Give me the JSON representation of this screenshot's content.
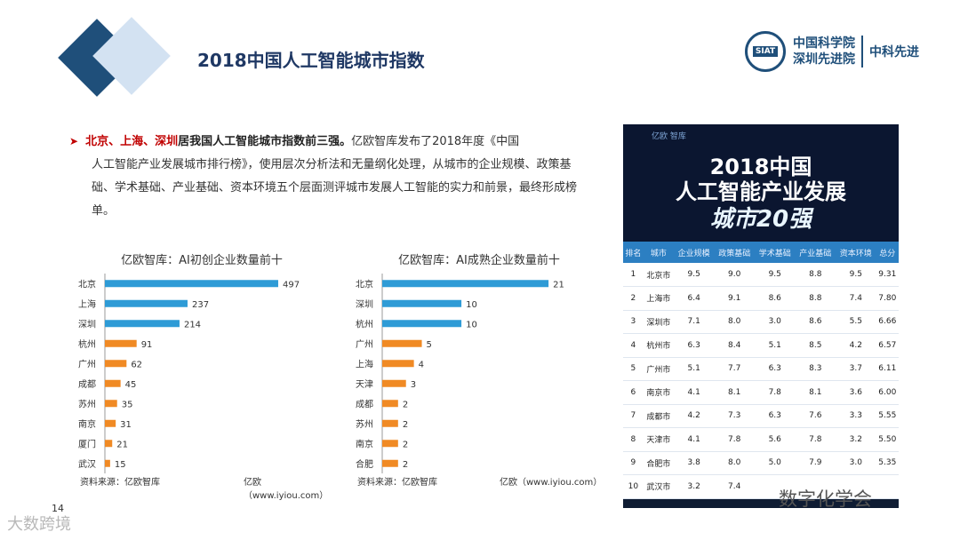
{
  "header": {
    "title": "2018中国人工智能城市指数",
    "logo_badge": "SIAT",
    "logo_name_line1": "中国科学院",
    "logo_name_line2": "深圳先进院",
    "logo_short": "中科先进"
  },
  "intro": {
    "highlight": "北京、上海、深圳",
    "lead": "居我国人工智能城市指数前三强。",
    "line1_tail": "亿欧智库发布了2018年度《中国",
    "body": "人工智能产业发展城市排行榜》，使用层次分析法和无量纲化处理，从城市的企业规模、政策基础、学术基础、产业基础、资本环境五个层面测评城市发展人工智能的实力和前景，最终形成榜单。"
  },
  "chart_data": [
    {
      "type": "bar",
      "title": "亿欧智库：AI初创企业数量前十",
      "categories": [
        "北京",
        "上海",
        "深圳",
        "杭州",
        "广州",
        "成都",
        "苏州",
        "南京",
        "厦门",
        "武汉"
      ],
      "values": [
        497,
        237,
        214,
        91,
        62,
        45,
        35,
        31,
        21,
        15
      ],
      "colors": [
        "#2e9bd6",
        "#2e9bd6",
        "#2e9bd6",
        "#f08a24",
        "#f08a24",
        "#f08a24",
        "#f08a24",
        "#f08a24",
        "#f08a24",
        "#f08a24"
      ],
      "source": "资料来源：亿欧智库",
      "site": "亿欧（www.iyiou.com）",
      "xlim": [
        0,
        520
      ]
    },
    {
      "type": "bar",
      "title": "亿欧智库：AI成熟企业数量前十",
      "categories": [
        "北京",
        "深圳",
        "杭州",
        "广州",
        "上海",
        "天津",
        "成都",
        "苏州",
        "南京",
        "合肥"
      ],
      "values": [
        21,
        10,
        10,
        5,
        4,
        3,
        2,
        2,
        2,
        2
      ],
      "colors": [
        "#2e9bd6",
        "#2e9bd6",
        "#2e9bd6",
        "#f08a24",
        "#f08a24",
        "#f08a24",
        "#f08a24",
        "#f08a24",
        "#f08a24",
        "#f08a24"
      ],
      "source": "资料来源：亿欧智库",
      "site": "亿欧（www.iyiou.com）",
      "xlim": [
        0,
        22
      ]
    }
  ],
  "ranking": {
    "brand": "亿欧 智库",
    "banner_line1": "2018中国",
    "banner_line2": "人工智能产业发展",
    "banner_line3": "城市20强",
    "headers": [
      "排名",
      "城市",
      "企业规模",
      "政策基础",
      "学术基础",
      "产业基础",
      "资本环境",
      "总分"
    ],
    "rows": [
      [
        "1",
        "北京市",
        "9.5",
        "9.0",
        "9.5",
        "8.8",
        "9.5",
        "9.31"
      ],
      [
        "2",
        "上海市",
        "6.4",
        "9.1",
        "8.6",
        "8.8",
        "7.4",
        "7.80"
      ],
      [
        "3",
        "深圳市",
        "7.1",
        "8.0",
        "3.0",
        "8.6",
        "5.5",
        "6.66"
      ],
      [
        "4",
        "杭州市",
        "6.3",
        "8.4",
        "5.1",
        "8.5",
        "4.2",
        "6.57"
      ],
      [
        "5",
        "广州市",
        "5.1",
        "7.7",
        "6.3",
        "8.3",
        "3.7",
        "6.11"
      ],
      [
        "6",
        "南京市",
        "4.1",
        "8.1",
        "7.8",
        "8.1",
        "3.6",
        "6.00"
      ],
      [
        "7",
        "成都市",
        "4.2",
        "7.3",
        "6.3",
        "7.6",
        "3.3",
        "5.55"
      ],
      [
        "8",
        "天津市",
        "4.1",
        "7.8",
        "5.6",
        "7.8",
        "3.2",
        "5.50"
      ],
      [
        "9",
        "合肥市",
        "3.8",
        "8.0",
        "5.0",
        "7.9",
        "3.0",
        "5.35"
      ],
      [
        "10",
        "武汉市",
        "3.2",
        "7.4",
        "",
        "",
        "",
        ""
      ]
    ]
  },
  "page_number": "14",
  "watermark_left": "大数跨境",
  "watermark_right": "数字化学会"
}
